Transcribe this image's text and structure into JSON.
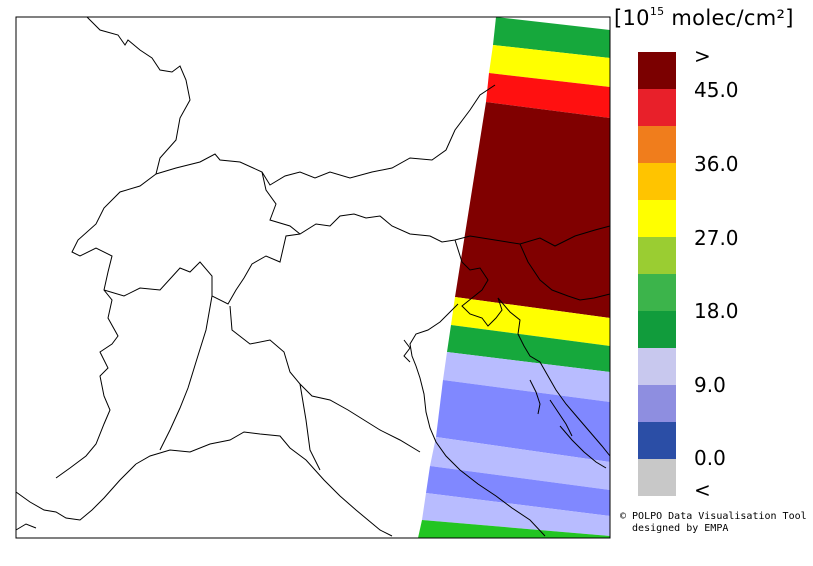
{
  "unit": {
    "prefix": "[10",
    "exponent": "15",
    "suffix": " molec/cm²]"
  },
  "legend": {
    "colors": [
      "#7b0000",
      "#e8202a",
      "#f07d1c",
      "#ffc400",
      "#ffff00",
      "#9acd32",
      "#3cb44b",
      "#119c3c",
      "#c8c8ee",
      "#8e8ee0",
      "#2b4ea6",
      "#c8c8c8"
    ],
    "labels": [
      ">",
      "45.0",
      "36.0",
      "27.0",
      "18.0",
      "9.0",
      "0.0",
      "<"
    ]
  },
  "colors": {
    "swath_green": "#16a83c",
    "swath_yellow": "#ffff00",
    "swath_red": "#ff1010",
    "swath_darkred": "#800000",
    "swath_lightblue": "#b8bcff",
    "swath_blue": "#8088ff",
    "swath_brightgreen": "#22c522"
  },
  "credit": {
    "line1": "© POLPO Data Visualisation Tool",
    "line2": "  designed by EMPA"
  }
}
